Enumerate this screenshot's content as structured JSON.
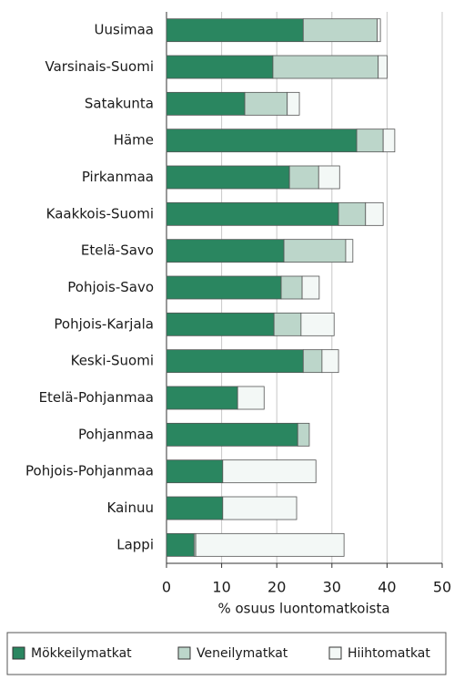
{
  "chart_data": {
    "type": "stacked_barh",
    "xlabel": "% osuus luontomatkoista",
    "categories": [
      "Uusimaa",
      "Varsinais-Suomi",
      "Satakunta",
      "Häme",
      "Pirkanmaa",
      "Kaakkois-Suomi",
      "Etelä-Savo",
      "Pohjois-Savo",
      "Pohjois-Karjala",
      "Keski-Suomi",
      "Etelä-Pohjanmaa",
      "Pohjanmaa",
      "Pohjois-Pohjanmaa",
      "Kainuu",
      "Lappi"
    ],
    "series": [
      {
        "name": "Mökkeilymatkat",
        "color": "#2a8660",
        "values": [
          24.8,
          19.3,
          14.2,
          34.5,
          22.3,
          31.2,
          21.3,
          20.8,
          19.5,
          24.8,
          12.9,
          23.8,
          10.2,
          10.2,
          5.0
        ]
      },
      {
        "name": "Veneilymatkat",
        "color": "#bcd6ca",
        "values": [
          13.4,
          19.1,
          7.7,
          4.8,
          5.3,
          4.9,
          11.2,
          3.8,
          4.9,
          3.4,
          0,
          2.1,
          0,
          0,
          0.3
        ]
      },
      {
        "name": "Hiihtomatkat",
        "color": "#f3f8f6",
        "values": [
          0.6,
          1.6,
          2.2,
          2.1,
          3.8,
          3.2,
          1.3,
          3.1,
          6.0,
          3.0,
          4.8,
          0,
          16.9,
          13.4,
          26.9
        ]
      }
    ],
    "xlim": [
      0,
      50
    ],
    "xticks": [
      0,
      10,
      20,
      30,
      40,
      50
    ],
    "grid": true,
    "legend": "bottom"
  }
}
